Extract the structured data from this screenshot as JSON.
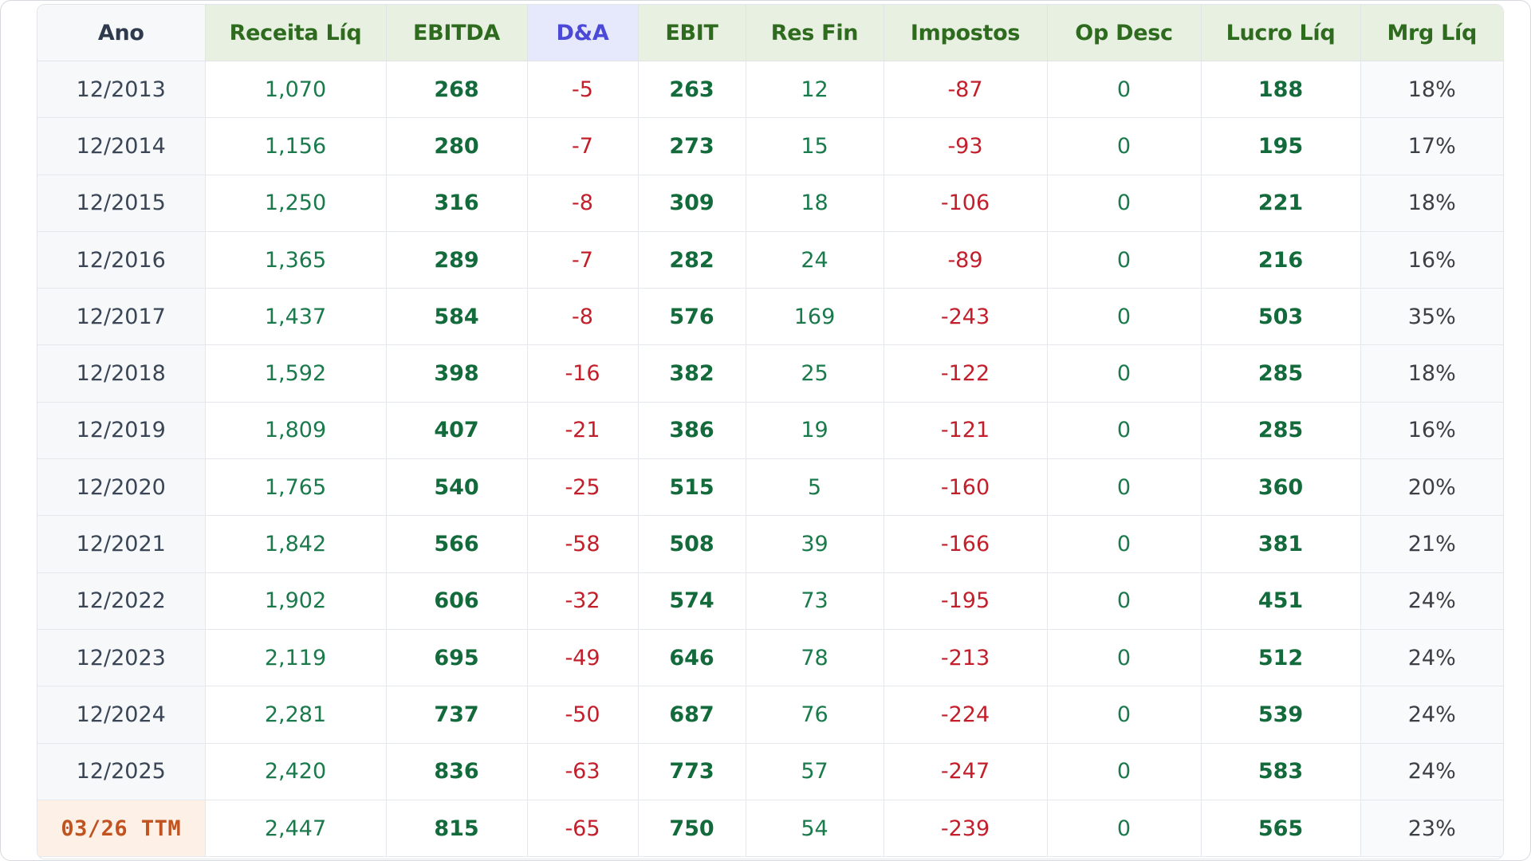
{
  "table": {
    "headers": {
      "ano": "Ano",
      "receita": "Receita Líq",
      "ebitda": "EBITDA",
      "da": "D&A",
      "ebit": "EBIT",
      "res_fin": "Res Fin",
      "impostos": "Impostos",
      "op_desc": "Op Desc",
      "lucro": "Lucro Líq",
      "mrg": "Mrg Líq"
    },
    "rows": [
      {
        "ano": "12/2013",
        "receita": "1,070",
        "ebitda": "268",
        "da": "-5",
        "ebit": "263",
        "res_fin": "12",
        "impostos": "-87",
        "op_desc": "0",
        "lucro": "188",
        "mrg": "18%"
      },
      {
        "ano": "12/2014",
        "receita": "1,156",
        "ebitda": "280",
        "da": "-7",
        "ebit": "273",
        "res_fin": "15",
        "impostos": "-93",
        "op_desc": "0",
        "lucro": "195",
        "mrg": "17%"
      },
      {
        "ano": "12/2015",
        "receita": "1,250",
        "ebitda": "316",
        "da": "-8",
        "ebit": "309",
        "res_fin": "18",
        "impostos": "-106",
        "op_desc": "0",
        "lucro": "221",
        "mrg": "18%"
      },
      {
        "ano": "12/2016",
        "receita": "1,365",
        "ebitda": "289",
        "da": "-7",
        "ebit": "282",
        "res_fin": "24",
        "impostos": "-89",
        "op_desc": "0",
        "lucro": "216",
        "mrg": "16%"
      },
      {
        "ano": "12/2017",
        "receita": "1,437",
        "ebitda": "584",
        "da": "-8",
        "ebit": "576",
        "res_fin": "169",
        "impostos": "-243",
        "op_desc": "0",
        "lucro": "503",
        "mrg": "35%"
      },
      {
        "ano": "12/2018",
        "receita": "1,592",
        "ebitda": "398",
        "da": "-16",
        "ebit": "382",
        "res_fin": "25",
        "impostos": "-122",
        "op_desc": "0",
        "lucro": "285",
        "mrg": "18%"
      },
      {
        "ano": "12/2019",
        "receita": "1,809",
        "ebitda": "407",
        "da": "-21",
        "ebit": "386",
        "res_fin": "19",
        "impostos": "-121",
        "op_desc": "0",
        "lucro": "285",
        "mrg": "16%"
      },
      {
        "ano": "12/2020",
        "receita": "1,765",
        "ebitda": "540",
        "da": "-25",
        "ebit": "515",
        "res_fin": "5",
        "impostos": "-160",
        "op_desc": "0",
        "lucro": "360",
        "mrg": "20%"
      },
      {
        "ano": "12/2021",
        "receita": "1,842",
        "ebitda": "566",
        "da": "-58",
        "ebit": "508",
        "res_fin": "39",
        "impostos": "-166",
        "op_desc": "0",
        "lucro": "381",
        "mrg": "21%"
      },
      {
        "ano": "12/2022",
        "receita": "1,902",
        "ebitda": "606",
        "da": "-32",
        "ebit": "574",
        "res_fin": "73",
        "impostos": "-195",
        "op_desc": "0",
        "lucro": "451",
        "mrg": "24%"
      },
      {
        "ano": "12/2023",
        "receita": "2,119",
        "ebitda": "695",
        "da": "-49",
        "ebit": "646",
        "res_fin": "78",
        "impostos": "-213",
        "op_desc": "0",
        "lucro": "512",
        "mrg": "24%"
      },
      {
        "ano": "12/2024",
        "receita": "2,281",
        "ebitda": "737",
        "da": "-50",
        "ebit": "687",
        "res_fin": "76",
        "impostos": "-224",
        "op_desc": "0",
        "lucro": "539",
        "mrg": "24%"
      },
      {
        "ano": "12/2025",
        "receita": "2,420",
        "ebitda": "836",
        "da": "-63",
        "ebit": "773",
        "res_fin": "57",
        "impostos": "-247",
        "op_desc": "0",
        "lucro": "583",
        "mrg": "24%"
      },
      {
        "ano": "03/26 TTM",
        "receita": "2,447",
        "ebitda": "815",
        "da": "-65",
        "ebit": "750",
        "res_fin": "54",
        "impostos": "-239",
        "op_desc": "0",
        "lucro": "565",
        "mrg": "23%"
      }
    ]
  },
  "colors": {
    "header_green_bg": "#e7f0e1",
    "header_green_text": "#2e6b1f",
    "header_da_bg": "#e6e9fb",
    "header_da_text": "#4b49d6",
    "positive_text": "#1a7a4c",
    "negative_text": "#c21f2b",
    "ttm_bg": "#fdf0e6",
    "ttm_text": "#c0531f"
  }
}
